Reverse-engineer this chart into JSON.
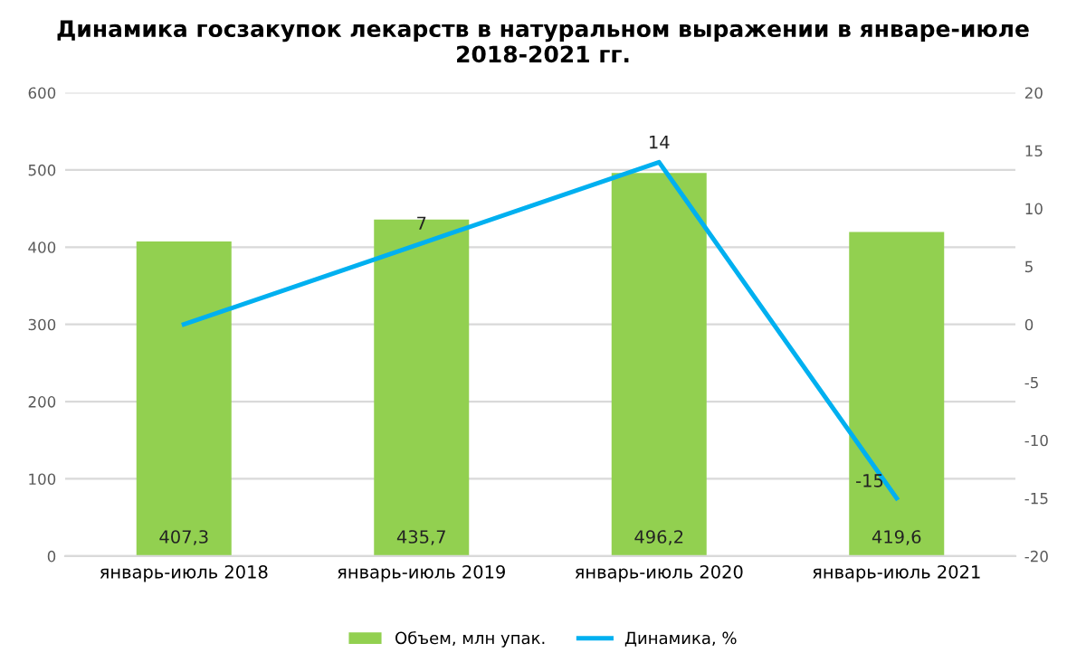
{
  "chart_data": {
    "type": "bar",
    "title": "Динамика госзакупок лекарств в натуральном выражении в январе-июле 2018-2021 гг.",
    "categories": [
      "январь-июль 2018",
      "январь-июль 2019",
      "январь-июль 2020",
      "январь-июль 2021"
    ],
    "series": [
      {
        "name": "Объем, млн упак.",
        "color": "#92d050",
        "values": [
          407.3,
          435.7,
          496.2,
          419.6
        ],
        "value_labels": [
          "407,3",
          "435,7",
          "496,2",
          "419,6"
        ]
      },
      {
        "name": "Динамика, %",
        "type": "line",
        "axis": "y2",
        "color": "#00b0f0",
        "values": [
          0,
          7,
          14,
          -15
        ],
        "value_labels": [
          null,
          "7",
          "14",
          "-15"
        ]
      }
    ],
    "ylim": [
      0,
      600
    ],
    "yticks": [
      0,
      100,
      200,
      300,
      400,
      500,
      600
    ],
    "y2lim": [
      -20,
      20
    ],
    "y2ticks": [
      -20,
      -15,
      -10,
      -5,
      0,
      5,
      10,
      15,
      20
    ],
    "grid": "y",
    "legend": "bottom"
  }
}
